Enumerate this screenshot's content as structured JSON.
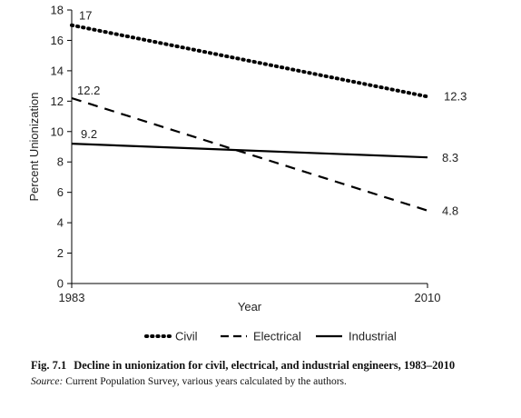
{
  "chart_data": {
    "type": "line",
    "x": [
      1983,
      2010
    ],
    "xlabel": "Year",
    "ylabel": "Percent Unionization",
    "ylim": [
      0,
      18
    ],
    "yticks": [
      0,
      2,
      4,
      6,
      8,
      10,
      12,
      14,
      16,
      18
    ],
    "xticks": [
      1983,
      2010
    ],
    "grid": false,
    "legend_position": "bottom",
    "series": [
      {
        "name": "Civil",
        "style": "dotted",
        "values": [
          17,
          12.3
        ],
        "labels": [
          "17",
          "12.3"
        ]
      },
      {
        "name": "Electrical",
        "style": "dashed",
        "values": [
          12.2,
          4.8
        ],
        "labels": [
          "12.2",
          "4.8"
        ]
      },
      {
        "name": "Industrial",
        "style": "solid",
        "values": [
          9.2,
          8.3
        ],
        "labels": [
          "9.2",
          "8.3"
        ]
      }
    ]
  },
  "caption": {
    "fig_label": "Fig. 7.1",
    "title": "Decline in unionization for civil, electrical, and industrial engineers, 1983–2010",
    "source_label": "Source:",
    "source_text": " Current Population Survey, various years calculated by the authors."
  },
  "colors": {
    "line": "#000000",
    "text": "#222222"
  }
}
